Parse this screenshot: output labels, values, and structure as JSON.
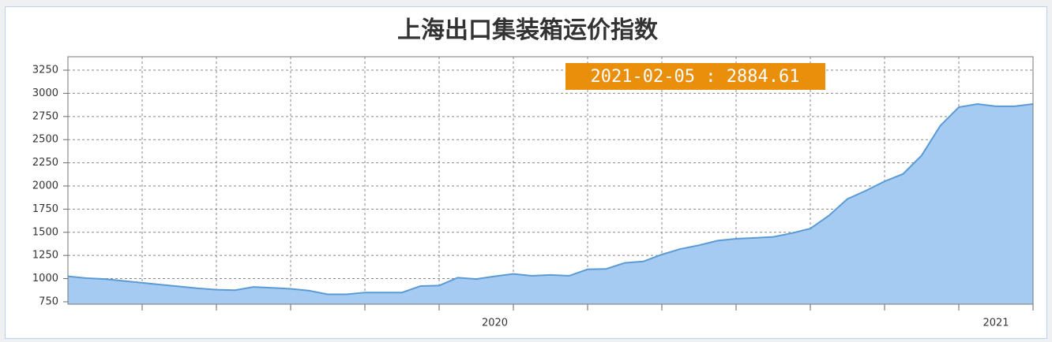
{
  "chart_data": {
    "type": "area",
    "title": "上海出口集装箱运价指数",
    "categories": [
      null,
      null,
      null,
      null,
      null,
      null,
      null,
      null,
      null,
      null,
      null,
      null,
      null,
      null,
      null,
      null,
      null,
      null,
      null,
      null,
      null,
      null,
      null,
      "2020",
      null,
      null,
      null,
      null,
      null,
      null,
      null,
      null,
      null,
      null,
      null,
      null,
      null,
      null,
      null,
      null,
      null,
      null,
      null,
      null,
      null,
      null,
      null,
      null,
      null,
      null,
      "2021",
      null,
      null
    ],
    "values": [
      1025,
      1005,
      995,
      975,
      955,
      935,
      915,
      895,
      880,
      875,
      910,
      900,
      890,
      870,
      830,
      830,
      850,
      850,
      850,
      920,
      925,
      1010,
      995,
      1025,
      1050,
      1030,
      1040,
      1030,
      1100,
      1105,
      1170,
      1185,
      1260,
      1320,
      1360,
      1410,
      1430,
      1440,
      1450,
      1490,
      1540,
      1680,
      1860,
      1950,
      2050,
      2130,
      2330,
      2650,
      2850,
      2885,
      2860,
      2860,
      2884.61
    ],
    "color": "#a6cbf3",
    "line_color": "#5b9bd5",
    "ylim": [
      724,
      3395
    ],
    "yticks": [
      750,
      1000,
      1250,
      1500,
      1750,
      2000,
      2250,
      2500,
      2750,
      3000,
      3250
    ],
    "grid": true,
    "annotation": "2021-02-05 : 2884.61"
  }
}
